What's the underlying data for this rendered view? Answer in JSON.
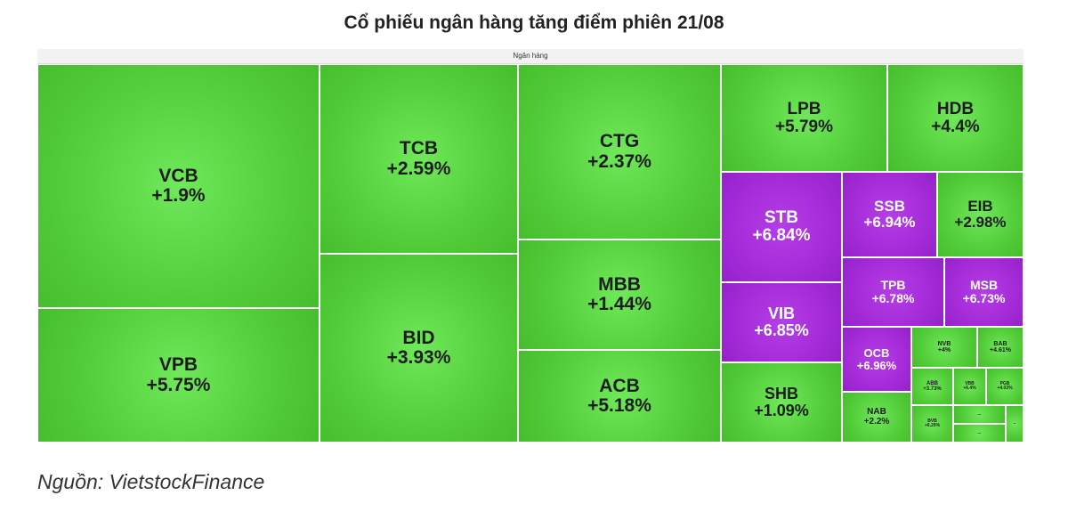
{
  "title": "Cổ phiếu ngân hàng tăng điểm phiên 21/08",
  "source": "Nguồn: VietstockFinance",
  "colors": {
    "up": "#55cf3b",
    "ceiling": "#a52bd9"
  },
  "chart_data": {
    "type": "treemap",
    "group": "Ngân hàng",
    "tiles": [
      {
        "ticker": "VCB",
        "change": "+1.9%",
        "color": "green"
      },
      {
        "ticker": "VPB",
        "change": "+5.75%",
        "color": "green"
      },
      {
        "ticker": "TCB",
        "change": "+2.59%",
        "color": "green"
      },
      {
        "ticker": "BID",
        "change": "+3.93%",
        "color": "green"
      },
      {
        "ticker": "CTG",
        "change": "+2.37%",
        "color": "green"
      },
      {
        "ticker": "MBB",
        "change": "+1.44%",
        "color": "green"
      },
      {
        "ticker": "ACB",
        "change": "+5.18%",
        "color": "green"
      },
      {
        "ticker": "LPB",
        "change": "+5.79%",
        "color": "green"
      },
      {
        "ticker": "HDB",
        "change": "+4.4%",
        "color": "green"
      },
      {
        "ticker": "STB",
        "change": "+6.84%",
        "color": "purple"
      },
      {
        "ticker": "SSB",
        "change": "+6.94%",
        "color": "purple"
      },
      {
        "ticker": "EIB",
        "change": "+2.98%",
        "color": "green"
      },
      {
        "ticker": "TPB",
        "change": "+6.78%",
        "color": "purple"
      },
      {
        "ticker": "MSB",
        "change": "+6.73%",
        "color": "purple"
      },
      {
        "ticker": "VIB",
        "change": "+6.85%",
        "color": "purple"
      },
      {
        "ticker": "OCB",
        "change": "+6.96%",
        "color": "purple"
      },
      {
        "ticker": "SHB",
        "change": "+1.09%",
        "color": "green"
      },
      {
        "ticker": "NVB",
        "change": "+4%",
        "color": "green"
      },
      {
        "ticker": "BAB",
        "change": "+4.61%",
        "color": "green"
      },
      {
        "ticker": "ABB",
        "change": "+3.73%",
        "color": "green"
      },
      {
        "ticker": "VBB",
        "change": "+6.4%",
        "color": "green"
      },
      {
        "ticker": "PGB",
        "change": "+4.03%",
        "color": "green"
      },
      {
        "ticker": "NAB",
        "change": "+2.2%",
        "color": "green"
      },
      {
        "ticker": "BVB",
        "change": "+6.29%",
        "color": "green"
      },
      {
        "ticker": "...",
        "change": "",
        "color": "green"
      },
      {
        "ticker": "...",
        "change": "",
        "color": "green"
      },
      {
        "ticker": "..",
        "change": "",
        "color": "green"
      }
    ]
  }
}
